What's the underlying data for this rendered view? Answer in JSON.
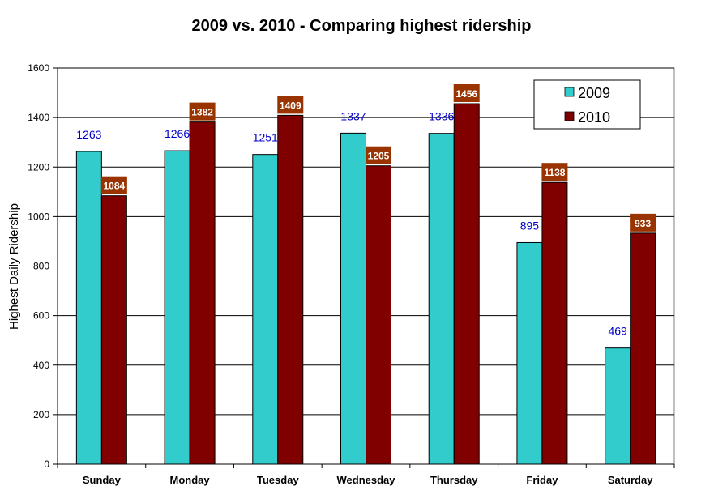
{
  "chart_data": {
    "type": "bar",
    "title": "2009 vs. 2010 - Comparing highest ridership",
    "xlabel": "",
    "ylabel": "Highest Daily Ridership",
    "ylim": [
      0,
      1600
    ],
    "yticks": [
      0,
      200,
      400,
      600,
      800,
      1000,
      1200,
      1400,
      1600
    ],
    "grid": true,
    "legend_position": "top-right",
    "categories": [
      "Sunday",
      "Monday",
      "Tuesday",
      "Wednesday",
      "Thursday",
      "Friday",
      "Saturday"
    ],
    "series": [
      {
        "name": "2009",
        "color": "#33cccc",
        "label_color": "#0000cc",
        "label_style": "plain",
        "values": [
          1263,
          1266,
          1251,
          1337,
          1336,
          895,
          469
        ]
      },
      {
        "name": "2010",
        "color": "#800000",
        "label_color": "#ffffff",
        "label_bg": "#993300",
        "label_style": "box",
        "values": [
          1084,
          1382,
          1409,
          1205,
          1456,
          1138,
          933
        ]
      }
    ]
  }
}
